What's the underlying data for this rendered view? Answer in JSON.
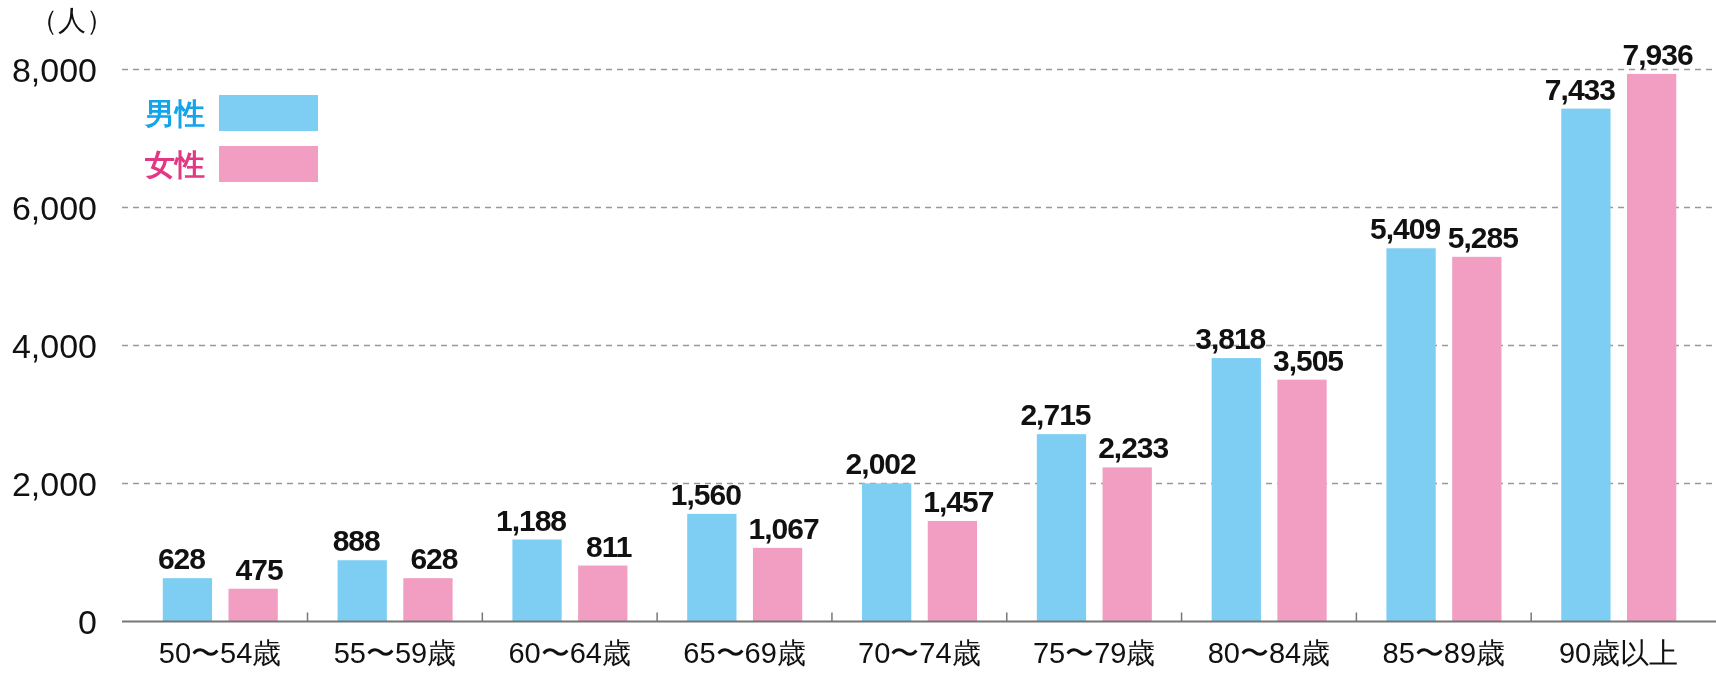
{
  "chart_data": {
    "type": "bar",
    "ylabel": "（人）",
    "categories": [
      "50〜54歳",
      "55〜59歳",
      "60〜64歳",
      "65〜69歳",
      "70〜74歳",
      "75〜79歳",
      "80〜84歳",
      "85〜89歳",
      "90歳以上"
    ],
    "series": [
      {
        "name": "男性",
        "color": "#7ecef4",
        "values": [
          628,
          888,
          1188,
          1560,
          2002,
          2715,
          3818,
          5409,
          7433
        ],
        "value_labels": [
          "628",
          "888",
          "1,188",
          "1,560",
          "2,002",
          "2,715",
          "3,818",
          "5,409",
          "7,433"
        ]
      },
      {
        "name": "女性",
        "color": "#f19ec2",
        "values": [
          475,
          628,
          811,
          1067,
          1457,
          2233,
          3505,
          5285,
          7936
        ],
        "value_labels": [
          "475",
          "628",
          "811",
          "1,067",
          "1,457",
          "2,233",
          "3,505",
          "5,285",
          "7,936"
        ]
      }
    ],
    "ylim": [
      0,
      8000
    ],
    "yticks": [
      0,
      {
        "value": 2000,
        "label": "2,000"
      },
      {
        "value": 4000,
        "label": "4,000"
      },
      {
        "value": 6000,
        "label": "6,000"
      },
      {
        "value": 8000,
        "label": "8,000"
      }
    ],
    "grid": "y",
    "legend": "top left"
  }
}
